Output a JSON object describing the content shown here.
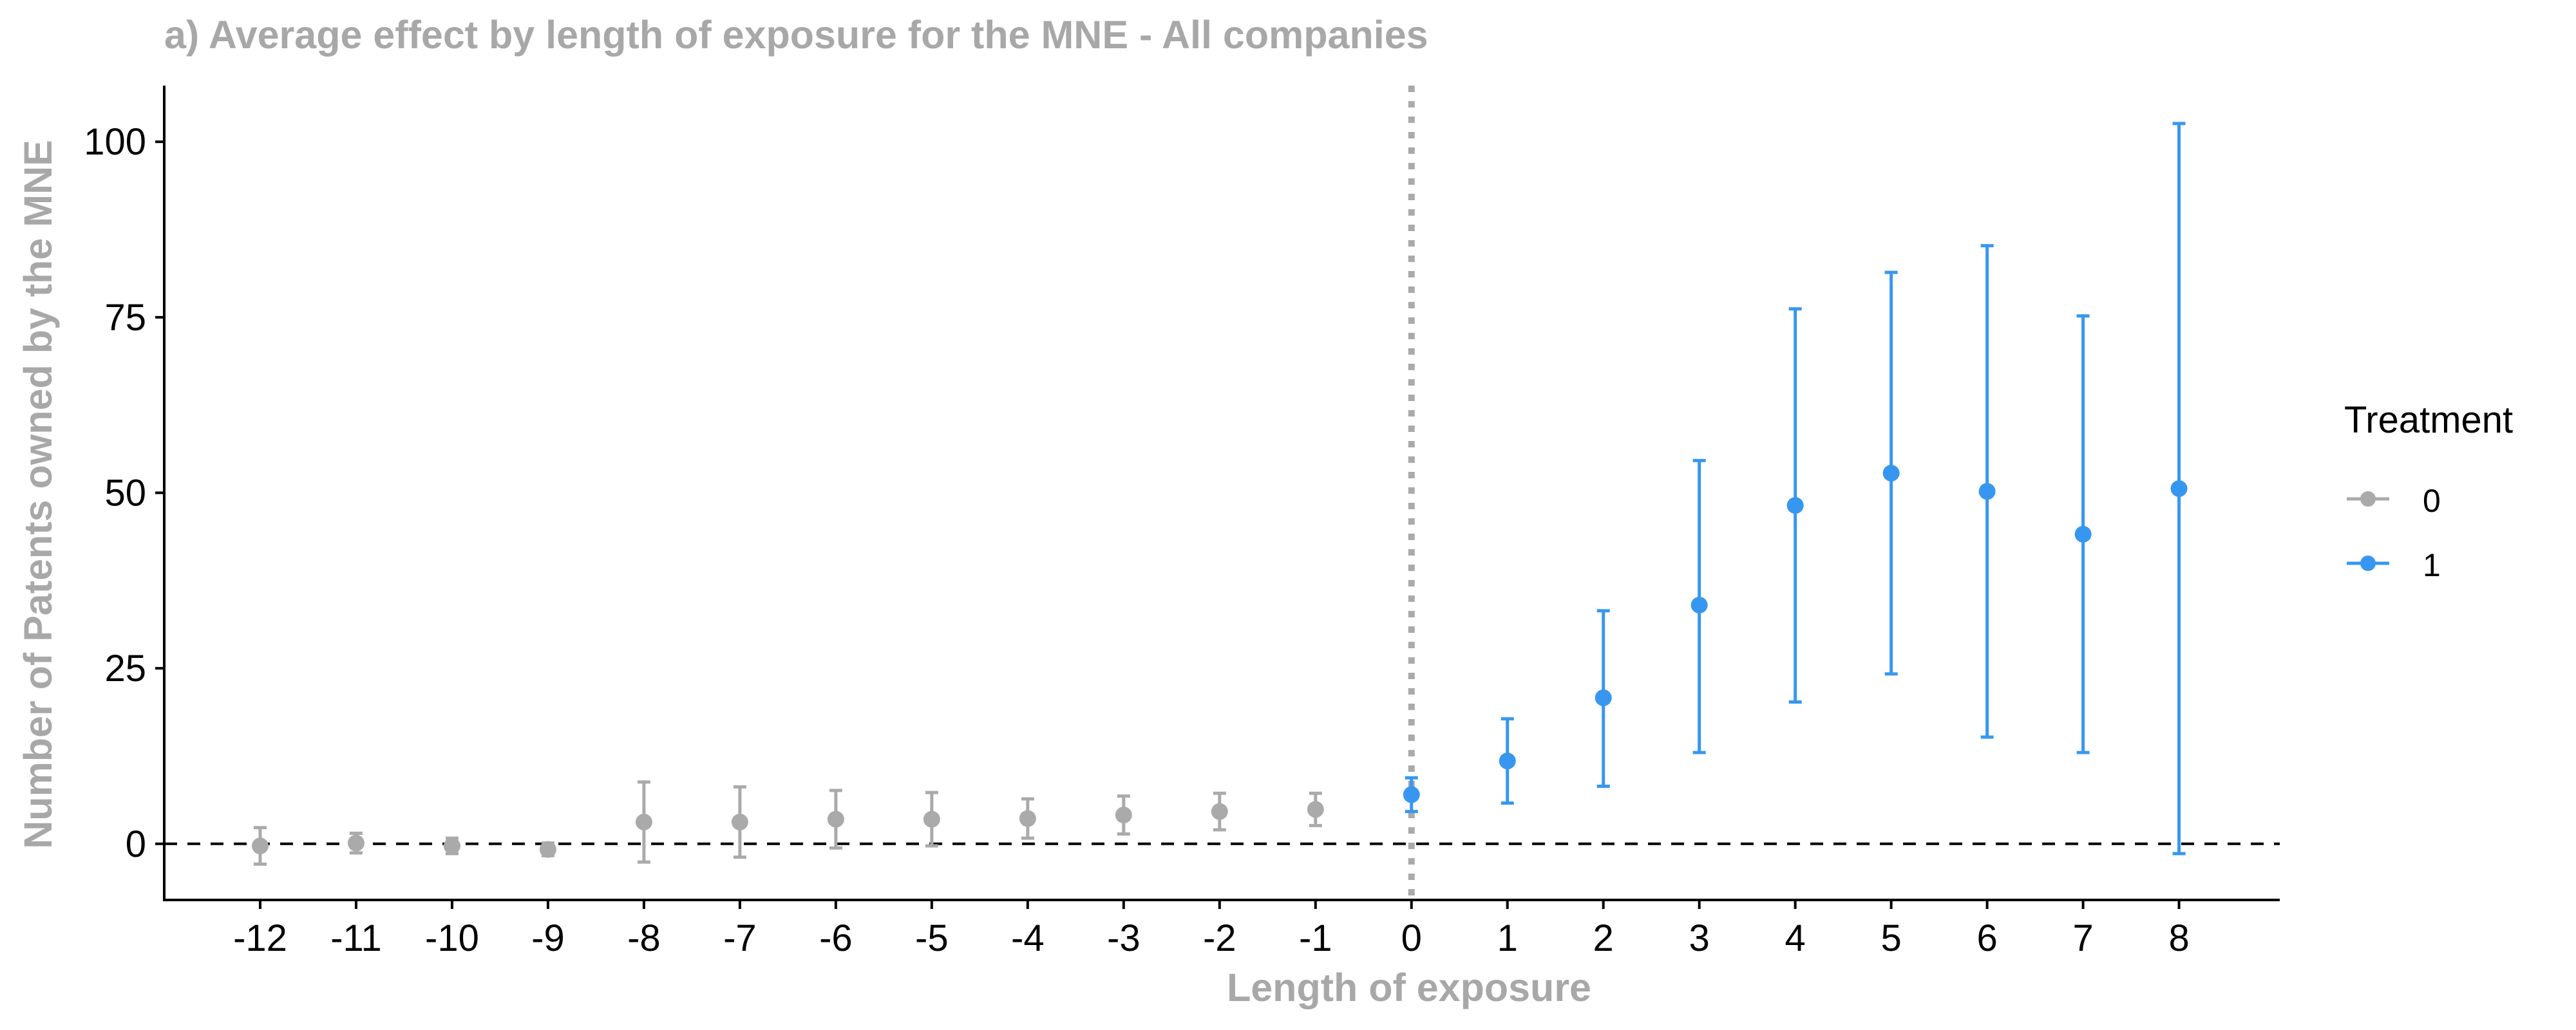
{
  "chart_data": {
    "type": "scatter",
    "title": "a) Average effect by length of exposure for the MNE - All companies",
    "xlabel": "Length of exposure",
    "ylabel": "Number of Patents owned by the MNE",
    "x_ticks": [
      -12,
      -11,
      -10,
      -9,
      -8,
      -7,
      -6,
      -5,
      -4,
      -3,
      -2,
      -1,
      0,
      1,
      2,
      3,
      4,
      5,
      6,
      7,
      8
    ],
    "y_ticks": [
      0,
      25,
      50,
      75,
      100
    ],
    "xlim": [
      -13,
      9.05
    ],
    "ylim": [
      -8,
      108
    ],
    "grid": false,
    "reference_lines": {
      "hline_y": 0,
      "hline_style": "dashed",
      "vline_x": 0,
      "vline_style": "dotted"
    },
    "legend": {
      "title": "Treatment",
      "placement": "right"
    },
    "series": [
      {
        "name": "0",
        "color": "#aaaaaa",
        "points": [
          {
            "x": -12,
            "y": -0.3,
            "lo": -2.9,
            "hi": 2.3
          },
          {
            "x": -11,
            "y": 0.1,
            "lo": -1.3,
            "hi": 1.5
          },
          {
            "x": -10,
            "y": -0.3,
            "lo": -1.4,
            "hi": 0.8
          },
          {
            "x": -9,
            "y": -0.8,
            "lo": -1.7,
            "hi": 0.1
          },
          {
            "x": -8,
            "y": 3.1,
            "lo": -2.6,
            "hi": 8.8
          },
          {
            "x": -7,
            "y": 3.1,
            "lo": -1.9,
            "hi": 8.1
          },
          {
            "x": -6,
            "y": 3.5,
            "lo": -0.6,
            "hi": 7.6
          },
          {
            "x": -5,
            "y": 3.5,
            "lo": -0.3,
            "hi": 7.3
          },
          {
            "x": -4,
            "y": 3.6,
            "lo": 0.8,
            "hi": 6.4
          },
          {
            "x": -3,
            "y": 4.1,
            "lo": 1.4,
            "hi": 6.8
          },
          {
            "x": -2,
            "y": 4.6,
            "lo": 2.0,
            "hi": 7.2
          },
          {
            "x": -1,
            "y": 4.9,
            "lo": 2.6,
            "hi": 7.2
          }
        ]
      },
      {
        "name": "1",
        "color": "#3797f0",
        "points": [
          {
            "x": 0,
            "y": 7.0,
            "lo": 4.6,
            "hi": 9.4
          },
          {
            "x": 1,
            "y": 11.8,
            "lo": 5.8,
            "hi": 17.8
          },
          {
            "x": 2,
            "y": 20.8,
            "lo": 8.2,
            "hi": 33.2
          },
          {
            "x": 3,
            "y": 34.0,
            "lo": 13.0,
            "hi": 54.6
          },
          {
            "x": 4,
            "y": 48.2,
            "lo": 20.2,
            "hi": 76.2
          },
          {
            "x": 5,
            "y": 52.8,
            "lo": 24.2,
            "hi": 81.4
          },
          {
            "x": 6,
            "y": 50.2,
            "lo": 15.2,
            "hi": 85.2
          },
          {
            "x": 7,
            "y": 44.1,
            "lo": 13.0,
            "hi": 75.2
          },
          {
            "x": 8,
            "y": 50.6,
            "lo": -1.4,
            "hi": 102.6
          }
        ]
      }
    ]
  }
}
